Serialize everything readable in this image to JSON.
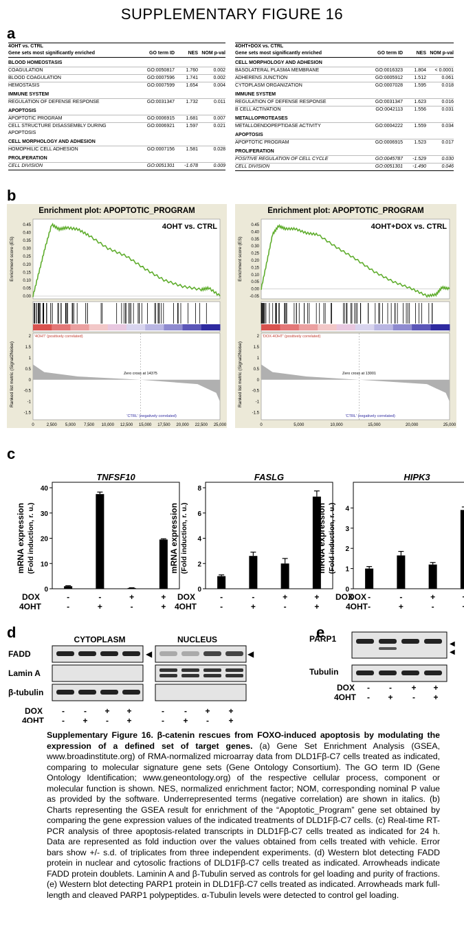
{
  "title": "SUPPLEMENTARY FIGURE 16",
  "panels": {
    "a": "a",
    "b": "b",
    "c": "c",
    "d": "d",
    "e": "e"
  },
  "table_left": {
    "header": "4OHT vs. CTRL",
    "columns": [
      "Gene sets most significantly enriched",
      "GO term ID",
      "NES",
      "NOM p-val"
    ],
    "groups": [
      {
        "name": "BLOOD HOMEOSTASIS",
        "rows": [
          [
            "COAGULATION",
            "GO:0050817",
            "1.760",
            "0.002"
          ],
          [
            "BLOOD COAGULATION",
            "GO:0007596",
            "1.741",
            "0.002"
          ],
          [
            "HEMOSTASIS",
            "GO:0007599",
            "1.654",
            "0.004"
          ]
        ]
      },
      {
        "name": "IMMUNE SYSTEM",
        "rows": [
          [
            "REGULATION OF DEFENSE RESPONSE",
            "GO:0031347",
            "1.732",
            "0.011"
          ]
        ]
      },
      {
        "name": "APOPTOSIS",
        "rows": [
          [
            "APOPTOTIC PROGRAM",
            "GO:0006915",
            "1.681",
            "0.007"
          ],
          [
            "CELL STRUCTURE DISASSEMBLY DURING APOPTOSIS",
            "GO:0006921",
            "1.597",
            "0.021"
          ]
        ]
      },
      {
        "name": "CELL MORPHOLOGY AND ADHESION",
        "rows": [
          [
            "HOMOPHILIC CELL ADHESION",
            "GO:0007156",
            "1.581",
            "0.028"
          ]
        ]
      },
      {
        "name": "PROLIFERATION",
        "italic_rows": true,
        "rows": [
          [
            "CELL DIVISION",
            "GO:0051301",
            "-1.678",
            "0.009"
          ]
        ]
      }
    ]
  },
  "table_right": {
    "header": "4OHT+DOX vs. CTRL",
    "columns": [
      "Gene sets most significantly enriched",
      "GO term ID",
      "NES",
      "NOM p-val"
    ],
    "groups": [
      {
        "name": "CELL MORPHOLOGY AND ADHESION",
        "rows": [
          [
            "BASOLATERAL PLASMA MEMBRANE",
            "GO:0016323",
            "1.804",
            "< 0.0001"
          ],
          [
            "ADHERENS JUNCTION",
            "GO:0005912",
            "1.512",
            "0.061"
          ],
          [
            "CYTOPLASM ORGANIZATION",
            "GO:0007028",
            "1.595",
            "0.018"
          ]
        ]
      },
      {
        "name": "IMMUNE SYSTEM",
        "rows": [
          [
            "REGULATION OF DEFENSE RESPONSE",
            "GO:0031347",
            "1.623",
            "0.016"
          ],
          [
            "B CELL ACTIVATION",
            "GO:0042113",
            "1.556",
            "0.031"
          ]
        ]
      },
      {
        "name": "METALLOPROTEASES",
        "rows": [
          [
            "METALLOENDOPEPTIDASE ACTIVITY",
            "GO:0004222",
            "1.559",
            "0.034"
          ]
        ]
      },
      {
        "name": "APOPTOSIS",
        "rows": [
          [
            "APOPTOTIC PROGRAM",
            "GO:0006915",
            "1.523",
            "0.017"
          ]
        ]
      },
      {
        "name": "PROLIFERATION",
        "italic_rows": true,
        "rows": [
          [
            "POSITIVE REGULATION OF CELL CYCLE",
            "GO:0045787",
            "-1.529",
            "0.030"
          ],
          [
            "CELL DIVISION",
            "GO:0051301",
            "-1.490",
            "0.046"
          ]
        ]
      }
    ]
  },
  "gsea": [
    {
      "title": "Enrichment plot: APOPTOTIC_PROGRAM",
      "comparison": "4OHT vs. CTRL",
      "es_ticks": [
        "0.45",
        "0.40",
        "0.35",
        "0.30",
        "0.25",
        "0.20",
        "0.15",
        "0.10",
        "0.05",
        "0.00"
      ],
      "es_max": 0.45,
      "es_min": 0.0,
      "es_curve": [
        [
          0,
          0.0
        ],
        [
          800,
          0.15
        ],
        [
          1600,
          0.3
        ],
        [
          2500,
          0.45
        ],
        [
          3500,
          0.42
        ],
        [
          4500,
          0.43
        ],
        [
          6000,
          0.42
        ],
        [
          7500,
          0.38
        ],
        [
          10000,
          0.3
        ],
        [
          12500,
          0.25
        ],
        [
          15000,
          0.17
        ],
        [
          17500,
          0.1
        ],
        [
          20000,
          0.06
        ],
        [
          22500,
          0.04
        ],
        [
          23500,
          0.05
        ],
        [
          25000,
          0.0
        ]
      ],
      "xticks": [
        "0",
        "2,500",
        "5,000",
        "7,500",
        "10,000",
        "12,500",
        "15,000",
        "17,500",
        "20,000",
        "22,500",
        "25,000"
      ],
      "xmax": 25000,
      "metric_ticks": [
        "2",
        "1.5",
        "1",
        "0.5",
        "0",
        "-0.5",
        "-1",
        "-1.5"
      ],
      "pos_label": "'4OHT' (positively correlated)",
      "neg_label": "'CTRL' (negatively correlated)",
      "zero_cross": "Zero cross at 14375",
      "zero_x": 14375
    },
    {
      "title": "Enrichment plot: APOPTOTIC_PROGRAM",
      "comparison": "4OHT+DOX vs. CTRL",
      "es_ticks": [
        "0.45",
        "0.40",
        "0.35",
        "0.30",
        "0.25",
        "0.20",
        "0.15",
        "0.10",
        "0.05",
        "0.00",
        "-0.05"
      ],
      "es_max": 0.45,
      "es_min": -0.05,
      "es_curve": [
        [
          0,
          0.0
        ],
        [
          800,
          0.2
        ],
        [
          1500,
          0.38
        ],
        [
          2300,
          0.44
        ],
        [
          3200,
          0.42
        ],
        [
          4500,
          0.42
        ],
        [
          6000,
          0.39
        ],
        [
          7500,
          0.38
        ],
        [
          10000,
          0.29
        ],
        [
          12500,
          0.21
        ],
        [
          15000,
          0.12
        ],
        [
          17500,
          0.05
        ],
        [
          20000,
          0.0
        ],
        [
          22000,
          -0.05
        ],
        [
          23200,
          -0.04
        ],
        [
          24000,
          0.01
        ],
        [
          25000,
          0.0
        ]
      ],
      "xticks": [
        "0",
        "5,000",
        "10,000",
        "15,000",
        "20,000",
        "25,000"
      ],
      "xmax": 25000,
      "metric_ticks": [
        "2",
        "1.5",
        "1",
        "0.5",
        "0",
        "-0.5",
        "-1",
        "-1.5"
      ],
      "pos_label": "'DOX-4OHT' (positively correlated)",
      "neg_label": "'CTRL' (negatively correlated)",
      "zero_cross": "Zero cross at 13001",
      "zero_x": 13001
    }
  ],
  "gsea_common": {
    "ylabel_es": "Enrichment score (ES)",
    "ylabel_metric": "Ranked list metric (Signal2Noise)",
    "xlabel": "Rank in Ordered Dataset",
    "legend": [
      "Enrichment profile",
      "Hits",
      "Ranking metric scores"
    ],
    "colors": {
      "es": "#5fad2d",
      "hit": "#000000",
      "metric": "#b0b0b0"
    }
  },
  "chart_data": [
    {
      "type": "bar",
      "title": "TNFSF10",
      "ylabel": "mRNA expression",
      "ylabel2": "(Fold induction, r. u.)",
      "categories": [
        "-/-",
        "-/+",
        "+/-",
        "+/+"
      ],
      "values": [
        1,
        37.5,
        0.3,
        19.5
      ],
      "errors": [
        0.2,
        0.8,
        0.1,
        0.3
      ],
      "ylim": [
        0,
        40
      ],
      "yticks": [
        0,
        10,
        20,
        30,
        40
      ]
    },
    {
      "type": "bar",
      "title": "FASLG",
      "ylabel": "mRNA expression",
      "ylabel2": "(Fold induction, r. u.)",
      "categories": [
        "-/-",
        "-/+",
        "+/-",
        "+/+"
      ],
      "values": [
        1,
        2.6,
        2.0,
        7.3
      ],
      "errors": [
        0.1,
        0.3,
        0.4,
        0.45
      ],
      "ylim": [
        0,
        8
      ],
      "yticks": [
        0,
        2,
        4,
        6,
        8
      ]
    },
    {
      "type": "bar",
      "title": "HIPK3",
      "ylabel": "mRNA expression",
      "ylabel2": "(Fold induction, r. u.)",
      "categories": [
        "-/-",
        "-/+",
        "+/-",
        "+/+"
      ],
      "values": [
        1,
        1.65,
        1.2,
        3.9
      ],
      "errors": [
        0.1,
        0.2,
        0.1,
        0.15
      ],
      "ylim": [
        0,
        5
      ],
      "yticks": [
        0,
        1,
        2,
        3,
        4
      ]
    }
  ],
  "treatments": {
    "dox_label": "DOX",
    "ohtt_label": "4OHT",
    "dox": [
      "-",
      "-",
      "+",
      "+"
    ],
    "ohtt": [
      "-",
      "+",
      "-",
      "+"
    ]
  },
  "blot_d": {
    "cyto": "CYTOPLASM",
    "nuc": "NUCLEUS",
    "rows": [
      "FADD",
      "Lamin A",
      "β-tubulin"
    ]
  },
  "blot_e": {
    "rows": [
      "PARP1",
      "Tubulin"
    ]
  },
  "caption": {
    "lead": "Supplementary Figure 16.",
    "bold": "β-catenin rescues from FOXO-induced apoptosis by modulating the expression of a defined set of target genes.",
    "body": "(a) Gene Set Enrichment Analysis (GSEA, www.broadinstitute.org) of RMA-normalized microarray data from DLD1Fβ-C7 cells treated as indicated, comparing to molecular signature gene sets (Gene Ontology Consortium). The GO term ID (Gene Ontology Identification; www.geneontology.org) of the respective cellular process, component or molecular function is shown. NES, normalized enrichment factor; NOM, corresponding nominal P value as provided by the software. Underrepresented terms (negative correlation) are shown in italics. (b) Charts representing the GSEA result for enrichment of the “Apoptotic_Program” gene set obtained by comparing the gene expression values of the indicated treatments of DLD1Fβ-C7 cells. (c) Real-time RT-PCR analysis of three apoptosis-related transcripts in DLD1Fβ-C7 cells treated as indicated for 24 h. Data are represented as fold induction over the values obtained from cells treated with vehicle. Error bars show +/- s.d. of triplicates from three independent experiments. (d) Western blot detecting FADD protein in nuclear and cytosolic fractions of DLD1Fβ-C7 cells treated as indicated. Arrowheads indicate FADD protein doublets. Laminin A and β-Tubulin served as controls for gel loading and purity of fractions. (e) Western blot detecting PARP1 protein in DLD1Fβ-C7 cells treated as indicated. Arrowheads mark full-length and cleaved PARP1 polypeptides. α-Tubulin levels were detected to control gel loading."
  }
}
